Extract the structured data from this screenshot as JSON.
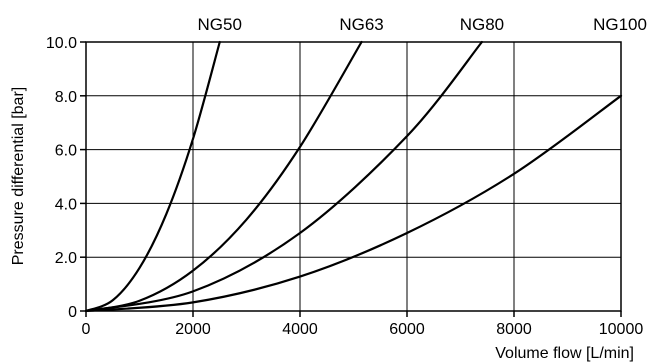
{
  "chart_data": {
    "type": "line",
    "title": "",
    "xlabel": "Volume flow [L/min]",
    "ylabel": "Pressure differential [bar]",
    "xlim": [
      0,
      10000
    ],
    "ylim": [
      0,
      10
    ],
    "x_ticks": [
      0,
      2000,
      4000,
      6000,
      8000,
      10000
    ],
    "x_tick_labels": [
      "0",
      "2000",
      "4000",
      "6000",
      "8000",
      "10000"
    ],
    "y_ticks": [
      0,
      2,
      4,
      6,
      8,
      10
    ],
    "y_tick_labels": [
      "0",
      "2.0",
      "4.0",
      "6.0",
      "8.0",
      "10.0"
    ],
    "grid": true,
    "line_color": "#000000",
    "series": [
      {
        "name": "NG50",
        "x": [
          0,
          500,
          1000,
          1500,
          2000,
          2500
        ],
        "y": [
          0,
          0.4,
          1.6,
          3.6,
          6.4,
          10.0
        ]
      },
      {
        "name": "NG63",
        "x": [
          0,
          1000,
          2000,
          3000,
          4000,
          5150
        ],
        "y": [
          0,
          0.38,
          1.5,
          3.4,
          6.1,
          10.0
        ]
      },
      {
        "name": "NG80",
        "x": [
          0,
          2000,
          4000,
          6000,
          7400
        ],
        "y": [
          0,
          0.73,
          2.9,
          6.5,
          10.0
        ]
      },
      {
        "name": "NG100",
        "x": [
          0,
          2000,
          4000,
          6000,
          8000,
          10000
        ],
        "y": [
          0,
          0.32,
          1.28,
          2.9,
          5.1,
          8.0
        ]
      }
    ]
  }
}
